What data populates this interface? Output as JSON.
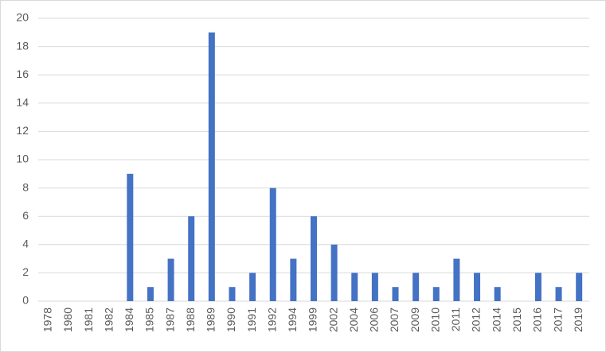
{
  "chart_data": {
    "type": "bar",
    "categories": [
      "1978",
      "1980",
      "1981",
      "1982",
      "1984",
      "1985",
      "1987",
      "1988",
      "1989",
      "1990",
      "1991",
      "1992",
      "1994",
      "1999",
      "2002",
      "2004",
      "2006",
      "2007",
      "2009",
      "2010",
      "2011",
      "2012",
      "2014",
      "2015",
      "2016",
      "2017",
      "2019"
    ],
    "values": [
      0,
      0,
      0,
      0,
      9,
      1,
      3,
      6,
      19,
      1,
      2,
      8,
      3,
      6,
      4,
      2,
      2,
      1,
      2,
      1,
      3,
      2,
      1,
      0,
      2,
      1,
      2
    ],
    "color": "#4472c4",
    "ylim": [
      0,
      20
    ],
    "yticks": [
      0,
      2,
      4,
      6,
      8,
      10,
      12,
      14,
      16,
      18,
      20
    ],
    "grid": true
  }
}
